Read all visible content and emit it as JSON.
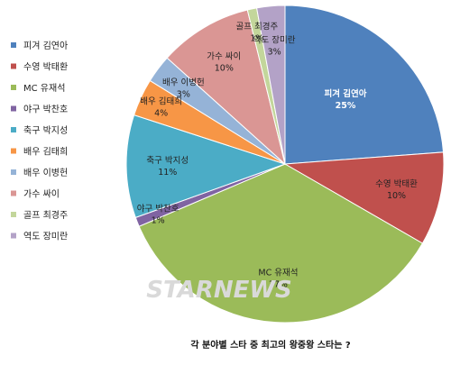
{
  "chart_data": {
    "type": "pie",
    "title": "각 분야별 스타 중 최고의 왕중왕 스타는 ?",
    "slices": [
      {
        "label": "피겨 김연아",
        "value": 25,
        "value_text": "25%",
        "color": "#4f81bd"
      },
      {
        "label": "수영 박태환",
        "value": 10,
        "value_text": "10%",
        "color": "#c0504d"
      },
      {
        "label": "MC 유재석",
        "value": 37,
        "value_text": "37%",
        "color": "#9bbb59"
      },
      {
        "label": "야구 박찬호",
        "value": 1,
        "value_text": "1%",
        "color": "#8064a2"
      },
      {
        "label": "축구 박지성",
        "value": 11,
        "value_text": "11%",
        "color": "#4bacc6"
      },
      {
        "label": "배우 김태희",
        "value": 4,
        "value_text": "4%",
        "color": "#f79646"
      },
      {
        "label": "배우 이병헌",
        "value": 3,
        "value_text": "3%",
        "color": "#95b3d7"
      },
      {
        "label": "가수 싸이",
        "value": 10,
        "value_text": "10%",
        "color": "#da9694"
      },
      {
        "label": "골프 최경주",
        "value": 1,
        "value_text": "1%",
        "color": "#c3d69b"
      },
      {
        "label": "역도 장미란",
        "value": 3,
        "value_text": "3%",
        "color": "#b3a2c7"
      }
    ],
    "legend_position": "left"
  },
  "watermark": "STARNEWS"
}
